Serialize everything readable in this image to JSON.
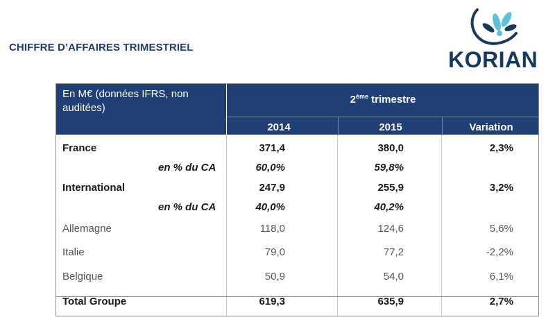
{
  "title": "CHIFFRE D’AFFAIRES TRIMESTRIEL",
  "logo": {
    "text": "KORIAN",
    "color": "#16395f",
    "accent": "#5cc2d8"
  },
  "table": {
    "unit_header": "En M€ (données IFRS, non auditées)",
    "period_prefix": "2",
    "period_sup": "ème",
    "period_suffix": " trimestre",
    "columns": [
      "2014",
      "2015",
      "Variation"
    ],
    "rows": [
      {
        "label": "France",
        "v2014": "371,4",
        "v2015": "380,0",
        "variation": "2,3%",
        "style": "bold"
      },
      {
        "label": "en % du CA",
        "v2014": "60,0%",
        "v2015": "59,8%",
        "variation": "",
        "style": "ital"
      },
      {
        "label": "International",
        "v2014": "247,9",
        "v2015": "255,9",
        "variation": "3,2%",
        "style": "bold"
      },
      {
        "label": "en % du CA",
        "v2014": "40,0%",
        "v2015": "40,2%",
        "variation": "",
        "style": "ital"
      },
      {
        "label": "Allemagne",
        "v2014": "118,0",
        "v2015": "124,6",
        "variation": "5,6%",
        "style": "light"
      },
      {
        "label": "Italie",
        "v2014": "79,0",
        "v2015": "77,2",
        "variation": "-2,2%",
        "style": "light"
      },
      {
        "label": "Belgique",
        "v2014": "50,9",
        "v2015": "54,0",
        "variation": "6,1%",
        "style": "light"
      },
      {
        "label": "Total Groupe",
        "v2014": "619,3",
        "v2015": "635,9",
        "variation": "2,7%",
        "style": "bold"
      }
    ]
  },
  "colors": {
    "header_bg": "#1f3f75",
    "title": "#1f3b77"
  }
}
